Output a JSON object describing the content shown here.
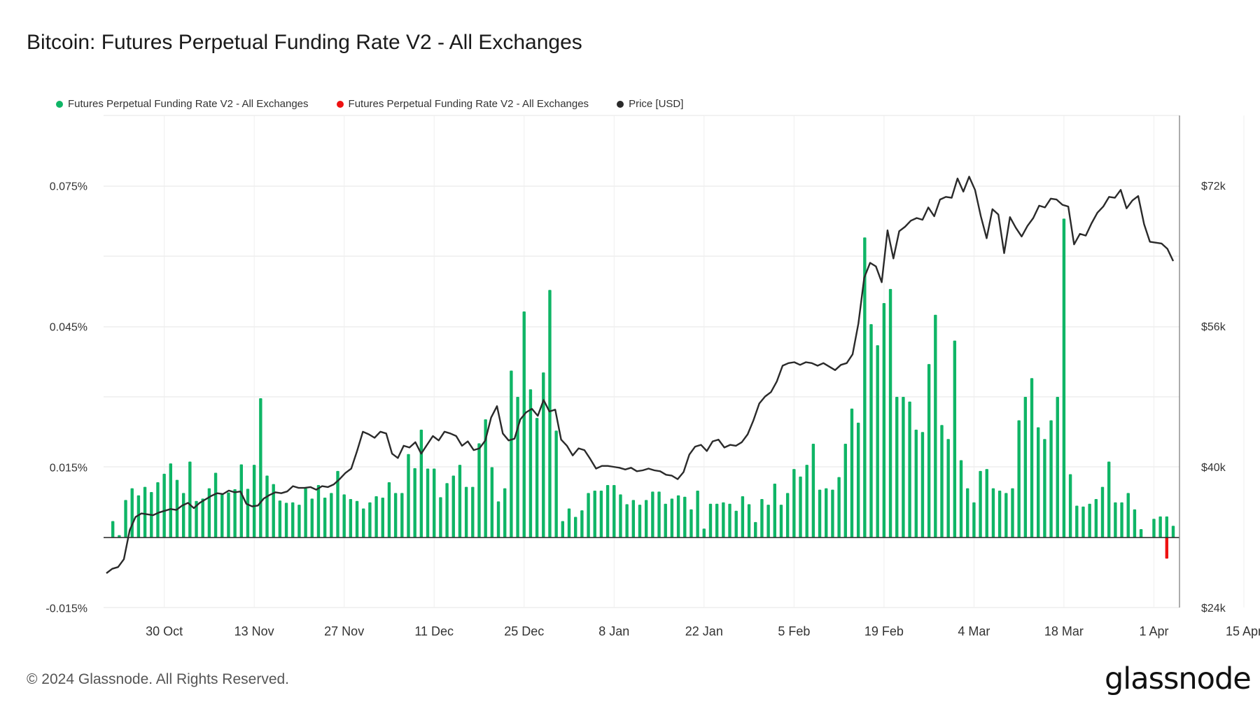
{
  "title": "Bitcoin: Futures Perpetual Funding Rate V2 - All Exchanges",
  "footer": "© 2024 Glassnode. All Rights Reserved.",
  "logo": "glassnode",
  "legend": [
    {
      "label": "Futures Perpetual Funding Rate V2 - All Exchanges",
      "color": "#0fb566"
    },
    {
      "label": "Futures Perpetual Funding Rate V2 - All Exchanges",
      "color": "#ee1111"
    },
    {
      "label": "Price [USD]",
      "color": "#2a2a2a"
    }
  ],
  "chart_data": {
    "type": "bar",
    "x_ticks": [
      "30 Oct",
      "13 Nov",
      "27 Nov",
      "11 Dec",
      "25 Dec",
      "8 Jan",
      "22 Jan",
      "5 Feb",
      "19 Feb",
      "4 Mar",
      "18 Mar",
      "1 Apr",
      "15 Apr"
    ],
    "left_axis": {
      "ticks": [
        "0.075%",
        "0.045%",
        "0.015%",
        "-0.015%"
      ],
      "tick_values": [
        0.075,
        0.045,
        0.015,
        -0.015
      ],
      "range": [
        -0.015,
        0.09
      ]
    },
    "right_axis": {
      "ticks": [
        "$72k",
        "$56k",
        "$40k",
        "$24k"
      ],
      "tick_values": [
        72000,
        56000,
        40000,
        24000
      ],
      "range": [
        24000,
        80000
      ]
    },
    "grid": true,
    "legend_position": "top-left",
    "series": [
      {
        "name": "Futures Perpetual Funding Rate V2 - All Exchanges",
        "color": "#0fb566",
        "axis": "left",
        "values": [
          0.0,
          0.0035,
          0.0005,
          0.008,
          0.0105,
          0.009,
          0.0108,
          0.0097,
          0.0118,
          0.0136,
          0.0158,
          0.0123,
          0.0095,
          0.0162,
          0.0078,
          0.0083,
          0.0105,
          0.0138,
          0.0092,
          0.0096,
          0.0103,
          0.0156,
          0.0104,
          0.0155,
          0.0297,
          0.0132,
          0.0114,
          0.0079,
          0.0074,
          0.0075,
          0.007,
          0.0105,
          0.0083,
          0.0112,
          0.0085,
          0.0095,
          0.0142,
          0.0092,
          0.0082,
          0.0078,
          0.0062,
          0.0075,
          0.0088,
          0.0085,
          0.0118,
          0.0095,
          0.0095,
          0.0178,
          0.0148,
          0.023,
          0.0147,
          0.0147,
          0.0086,
          0.0116,
          0.0132,
          0.0155,
          0.0108,
          0.0108,
          0.0201,
          0.0252,
          0.015,
          0.0077,
          0.0105,
          0.0356,
          0.03,
          0.0482,
          0.0316,
          0.0255,
          0.0352,
          0.0528,
          0.0228,
          0.0035,
          0.0062,
          0.0044,
          0.0058,
          0.0095,
          0.01,
          0.01,
          0.0112,
          0.0112,
          0.0092,
          0.0071,
          0.008,
          0.007,
          0.008,
          0.0098,
          0.0098,
          0.0072,
          0.0083,
          0.009,
          0.0087,
          0.006,
          0.01,
          0.0019,
          0.0072,
          0.0072,
          0.0075,
          0.0072,
          0.0057,
          0.0088,
          0.0071,
          0.0033,
          0.0082,
          0.007,
          0.0115,
          0.007,
          0.0095,
          0.0146,
          0.013,
          0.0155,
          0.02,
          0.0102,
          0.0105,
          0.0102,
          0.0129,
          0.02,
          0.0275,
          0.0245,
          0.064,
          0.0455,
          0.041,
          0.05,
          0.053,
          0.03,
          0.03,
          0.029,
          0.023,
          0.0225,
          0.037,
          0.0475,
          0.024,
          0.021,
          0.042,
          0.0165,
          0.0105,
          0.0075,
          0.0142,
          0.0146,
          0.0105,
          0.01,
          0.0095,
          0.0105,
          0.025,
          0.03,
          0.034,
          0.0235,
          0.021,
          0.025,
          0.03,
          0.068,
          0.0135,
          0.0068,
          0.0066,
          0.0072,
          0.0082,
          0.0108,
          0.0162,
          0.0075,
          0.0075,
          0.0095,
          0.006,
          0.0018,
          0.0,
          0.004,
          0.0045,
          0.0045,
          0.0025
        ]
      },
      {
        "name": "Futures Perpetual Funding Rate V2 - All Exchanges",
        "color": "#ee1111",
        "axis": "left",
        "negative_points": [
          {
            "index": 165,
            "value": -0.0045
          }
        ]
      },
      {
        "name": "Price [USD]",
        "color": "#2a2a2a",
        "axis": "right",
        "values": [
          27900,
          28400,
          28600,
          29500,
          32800,
          34300,
          34700,
          34600,
          34500,
          34800,
          35000,
          35200,
          35100,
          35600,
          35900,
          35300,
          35900,
          36300,
          36700,
          37000,
          36900,
          37300,
          37100,
          37200,
          35800,
          35500,
          35600,
          36400,
          36800,
          37100,
          37000,
          37200,
          37800,
          37600,
          37600,
          37700,
          37400,
          37800,
          37700,
          38000,
          38600,
          39300,
          39800,
          41800,
          44000,
          43700,
          43300,
          44000,
          43800,
          41500,
          41000,
          42400,
          42200,
          42800,
          41500,
          42500,
          43500,
          43000,
          44000,
          43800,
          43500,
          42400,
          42900,
          41900,
          42100,
          43000,
          45600,
          46900,
          43800,
          43000,
          43200,
          45400,
          46200,
          46600,
          45800,
          47600,
          46300,
          46500,
          43100,
          42400,
          41300,
          42100,
          41900,
          40900,
          39800,
          40100,
          40100,
          40000,
          39900,
          39700,
          39900,
          39500,
          39600,
          39800,
          39600,
          39500,
          39100,
          39000,
          38600,
          39400,
          41400,
          42300,
          42500,
          41800,
          42900,
          43100,
          42200,
          42500,
          42400,
          42800,
          43700,
          45300,
          47200,
          48000,
          48500,
          49700,
          51500,
          51800,
          51900,
          51600,
          51900,
          51800,
          51500,
          51800,
          51400,
          51000,
          51600,
          51800,
          52800,
          56300,
          61500,
          63200,
          62800,
          61000,
          66900,
          63700,
          66800,
          67300,
          68000,
          68300,
          68100,
          69500,
          68500,
          70400,
          70700,
          70600,
          72800,
          71300,
          73000,
          71500,
          68500,
          66000,
          69300,
          68700,
          64300,
          68400,
          67200,
          66200,
          67400,
          68300,
          69700,
          69500,
          70500,
          70400,
          69800,
          69600,
          65300,
          66500,
          66300,
          67700,
          68900,
          69600,
          70700,
          70600,
          71500,
          69400,
          70300,
          70800,
          67600,
          65600,
          65500,
          65400,
          64800,
          63400
        ]
      }
    ]
  }
}
